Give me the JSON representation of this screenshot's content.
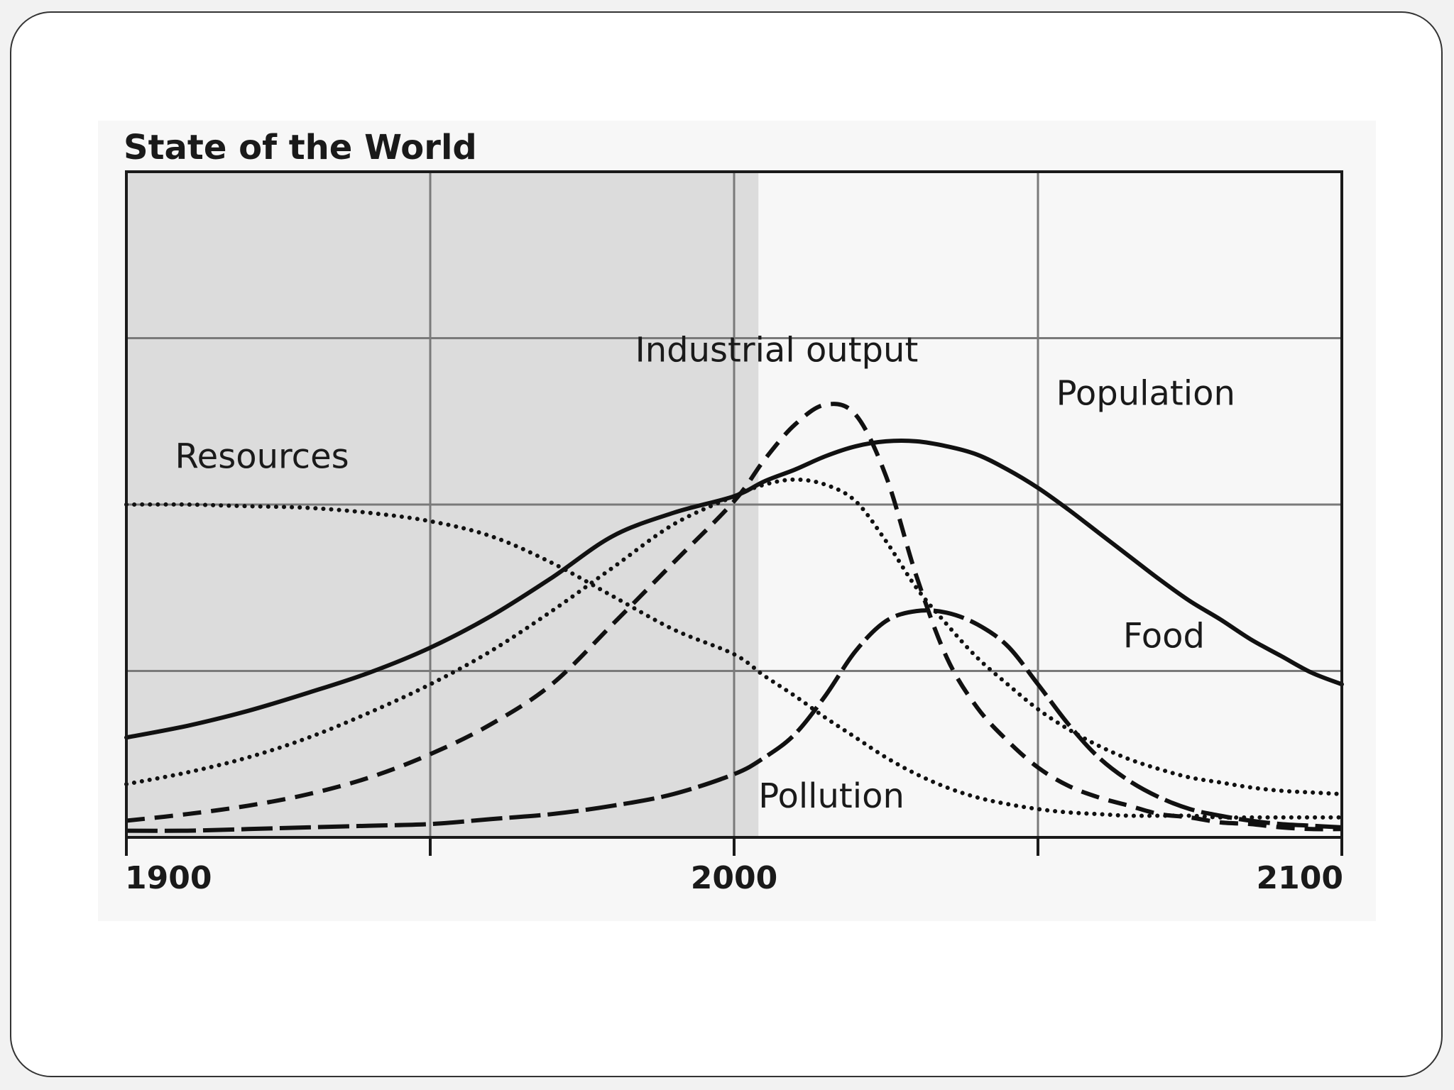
{
  "chart_data": {
    "type": "line",
    "title": "State of the World",
    "xlabel": "",
    "ylabel": "",
    "xlim": [
      1900,
      2100
    ],
    "ylim": [
      0,
      4
    ],
    "grid": true,
    "x_ticks": [
      1900,
      2000,
      2100
    ],
    "x_tick_labels": [
      "1900",
      "2000",
      "2100"
    ],
    "shaded_range": [
      1900,
      2004
    ],
    "legend": "none (inline labels)",
    "x": [
      1900,
      1910,
      1920,
      1930,
      1940,
      1950,
      1960,
      1970,
      1980,
      1990,
      2000,
      2005,
      2010,
      2015,
      2020,
      2025,
      2030,
      2035,
      2040,
      2045,
      2050,
      2055,
      2060,
      2065,
      2070,
      2075,
      2080,
      2085,
      2090,
      2095,
      2100
    ],
    "series": [
      {
        "name": "Resources",
        "style": "dotted",
        "values": [
          2.0,
          2.0,
          1.99,
          1.98,
          1.95,
          1.9,
          1.81,
          1.65,
          1.45,
          1.25,
          1.1,
          0.97,
          0.85,
          0.72,
          0.6,
          0.48,
          0.38,
          0.3,
          0.24,
          0.2,
          0.17,
          0.15,
          0.14,
          0.13,
          0.13,
          0.13,
          0.12,
          0.12,
          0.12,
          0.12,
          0.12
        ]
      },
      {
        "name": "Population",
        "style": "solid",
        "values": [
          0.6,
          0.67,
          0.76,
          0.87,
          0.99,
          1.14,
          1.33,
          1.56,
          1.81,
          1.95,
          2.05,
          2.14,
          2.21,
          2.29,
          2.35,
          2.38,
          2.38,
          2.35,
          2.3,
          2.21,
          2.1,
          1.97,
          1.83,
          1.69,
          1.55,
          1.42,
          1.31,
          1.19,
          1.09,
          0.99,
          0.92
        ]
      },
      {
        "name": "Food",
        "style": "dotted",
        "values": [
          0.32,
          0.39,
          0.48,
          0.6,
          0.75,
          0.92,
          1.12,
          1.36,
          1.62,
          1.88,
          2.05,
          2.12,
          2.15,
          2.12,
          2.02,
          1.78,
          1.5,
          1.28,
          1.08,
          0.92,
          0.77,
          0.65,
          0.55,
          0.47,
          0.41,
          0.36,
          0.33,
          0.3,
          0.28,
          0.27,
          0.26
        ]
      },
      {
        "name": "Industrial output",
        "style": "dashed",
        "values": [
          0.1,
          0.14,
          0.19,
          0.26,
          0.36,
          0.5,
          0.68,
          0.92,
          1.28,
          1.65,
          2.02,
          2.27,
          2.48,
          2.6,
          2.54,
          2.17,
          1.57,
          1.08,
          0.78,
          0.58,
          0.42,
          0.31,
          0.24,
          0.19,
          0.14,
          0.12,
          0.09,
          0.08,
          0.06,
          0.05,
          0.05
        ]
      },
      {
        "name": "Pollution",
        "style": "long-dash",
        "values": [
          0.04,
          0.04,
          0.05,
          0.06,
          0.07,
          0.08,
          0.11,
          0.14,
          0.19,
          0.26,
          0.38,
          0.48,
          0.62,
          0.85,
          1.12,
          1.3,
          1.36,
          1.35,
          1.28,
          1.15,
          0.92,
          0.68,
          0.48,
          0.34,
          0.24,
          0.17,
          0.13,
          0.1,
          0.08,
          0.07,
          0.06
        ]
      }
    ],
    "annotations": [
      {
        "text": "Resources",
        "series": "Resources"
      },
      {
        "text": "Industrial output",
        "series": "Industrial output"
      },
      {
        "text": "Population",
        "series": "Population"
      },
      {
        "text": "Food",
        "series": "Food"
      },
      {
        "text": "Pollution",
        "series": "Pollution"
      }
    ]
  }
}
